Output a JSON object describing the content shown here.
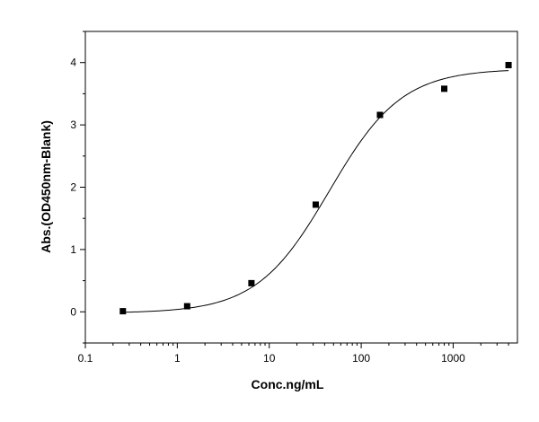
{
  "chart_data": {
    "type": "scatter",
    "xlabel": "Conc.ng/mL",
    "ylabel": "Abs.(OD450nm-Blank)",
    "x_scale": "log",
    "xlim": [
      0.1,
      5000
    ],
    "ylim": [
      -0.5,
      4.5
    ],
    "x_ticks": [
      {
        "value": 0.1,
        "label": "0.1"
      },
      {
        "value": 1,
        "label": "1"
      },
      {
        "value": 10,
        "label": "10"
      },
      {
        "value": 100,
        "label": "100"
      },
      {
        "value": 1000,
        "label": "1000"
      }
    ],
    "y_ticks": [
      {
        "value": 0,
        "label": "0"
      },
      {
        "value": 1,
        "label": "1"
      },
      {
        "value": 2,
        "label": "2"
      },
      {
        "value": 3,
        "label": "3"
      },
      {
        "value": 4,
        "label": "4"
      }
    ],
    "grid": false,
    "legend": "none",
    "series": [
      {
        "marker": "square",
        "color": "#000000",
        "x": [
          0.256,
          1.28,
          6.4,
          32,
          160,
          800,
          4000
        ],
        "y": [
          0.01,
          0.09,
          0.46,
          1.72,
          3.16,
          3.58,
          3.96
        ]
      }
    ],
    "fit_curve": {
      "model": "4PL",
      "bottom": -0.02,
      "top": 3.9,
      "ec50": 45,
      "hill": 1.1,
      "color": "#000000"
    }
  }
}
